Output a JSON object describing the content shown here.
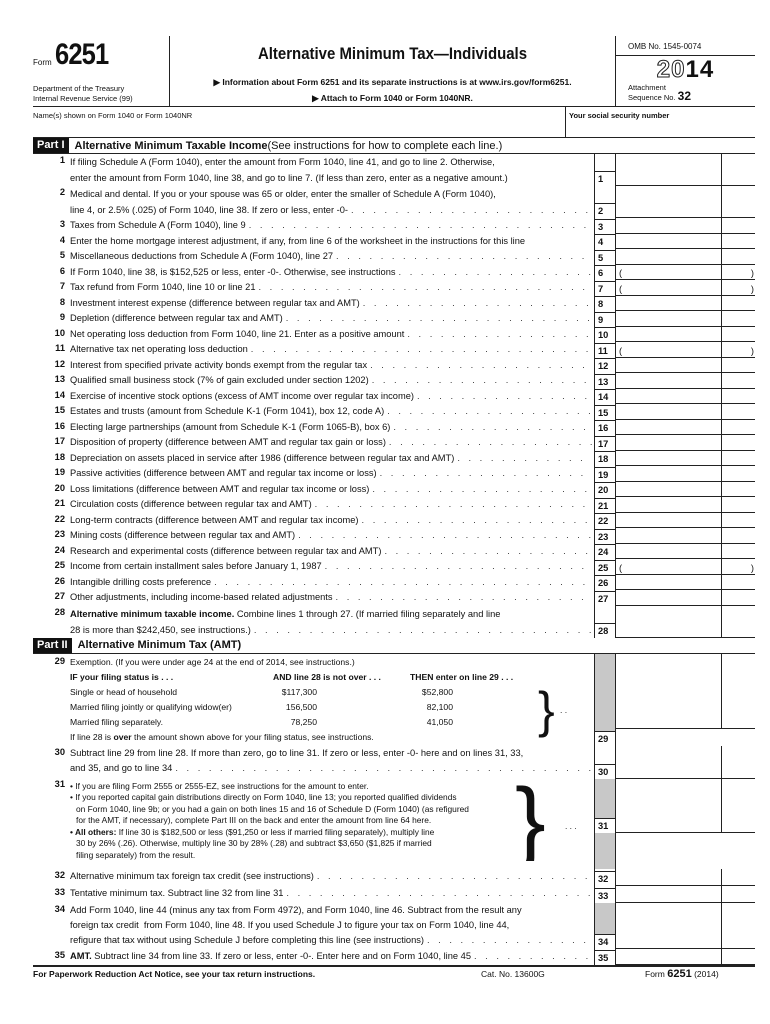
{
  "header": {
    "form_word": "Form",
    "form_number": "6251",
    "department": "Department of the Treasury",
    "irs": "Internal Revenue Service (99)",
    "title": "Alternative Minimum Tax—Individuals",
    "info": "▶ Information about Form 6251 and its separate instructions is at www.irs.gov/form6251.",
    "attach": "▶ Attach to Form 1040 or Form 1040NR.",
    "omb": "OMB No. 1545-0074",
    "year_outline": "20",
    "year_bold": "14",
    "attachment": "Attachment",
    "sequence": "Sequence No.",
    "sequence_no": "32"
  },
  "name_row": {
    "names_label": "Name(s) shown on Form 1040 or Form 1040NR",
    "ssn_label": "Your social security number"
  },
  "part1": {
    "tag": "Part I",
    "title": "Alternative Minimum Taxable Income",
    "subtitle": " (See instructions for how to complete each line.)",
    "lines": [
      {
        "num": "1",
        "lines": [
          "If filing Schedule A (Form 1040), enter the amount from Form 1040, line 41, and go to line 2. Otherwise,",
          "enter the amount from Form 1040, line 38, and go to line 7. (If less than zero, enter as a negative amount.)"
        ],
        "box": "1"
      },
      {
        "num": "2",
        "lines": [
          "Medical and dental. If you or your spouse was 65 or older, enter the smaller of Schedule A (Form 1040),",
          "line 4, or 2.5% (.025) of Form 1040, line 38. If zero or less, enter -0-"
        ],
        "box": "2",
        "lead": true
      },
      {
        "num": "3",
        "lines": [
          "Taxes from Schedule A (Form 1040), line 9"
        ],
        "box": "3",
        "lead": true
      },
      {
        "num": "4",
        "lines": [
          "Enter the home mortgage interest adjustment, if any, from line 6 of the worksheet in the instructions for this line"
        ],
        "box": "4"
      },
      {
        "num": "5",
        "lines": [
          "Miscellaneous deductions from Schedule A (Form 1040), line 27"
        ],
        "box": "5",
        "lead": true
      },
      {
        "num": "6",
        "lines": [
          "If Form 1040, line 38, is $152,525 or less, enter -0-. Otherwise, see instructions"
        ],
        "box": "6",
        "lead": true,
        "paren": [
          "(",
          ")"
        ]
      },
      {
        "num": "7",
        "lines": [
          "Tax refund from Form 1040, line 10 or line 21"
        ],
        "box": "7",
        "lead": true,
        "paren": [
          "(",
          ")"
        ]
      },
      {
        "num": "8",
        "lines": [
          "Investment interest expense (difference between regular tax and AMT)"
        ],
        "box": "8",
        "lead": true
      },
      {
        "num": "9",
        "lines": [
          "Depletion (difference between regular tax and AMT)"
        ],
        "box": "9",
        "lead": true
      },
      {
        "num": "10",
        "lines": [
          "Net operating loss deduction from Form 1040, line 21. Enter as a positive amount"
        ],
        "box": "10",
        "lead": true
      },
      {
        "num": "11",
        "lines": [
          "Alternative tax net operating loss deduction"
        ],
        "box": "11",
        "lead": true,
        "paren": [
          "(",
          ")"
        ]
      },
      {
        "num": "12",
        "lines": [
          "Interest from specified private activity bonds exempt from the regular tax"
        ],
        "box": "12",
        "lead": true
      },
      {
        "num": "13",
        "lines": [
          "Qualified small business stock (7% of gain excluded under section 1202)"
        ],
        "box": "13",
        "lead": true
      },
      {
        "num": "14",
        "lines": [
          "Exercise of incentive stock options (excess of AMT income over regular tax income)"
        ],
        "box": "14",
        "lead": true
      },
      {
        "num": "15",
        "lines": [
          "Estates and trusts (amount from Schedule K-1 (Form 1041), box 12, code A)"
        ],
        "box": "15",
        "lead": true
      },
      {
        "num": "16",
        "lines": [
          "Electing large partnerships (amount from Schedule K-1 (Form 1065-B), box 6)"
        ],
        "box": "16",
        "lead": true
      },
      {
        "num": "17",
        "lines": [
          "Disposition of property (difference between AMT and regular tax gain or loss)"
        ],
        "box": "17",
        "lead": true
      },
      {
        "num": "18",
        "lines": [
          "Depreciation on assets placed in service after 1986 (difference between regular tax and AMT)"
        ],
        "box": "18",
        "lead": true
      },
      {
        "num": "19",
        "lines": [
          "Passive activities (difference between AMT and regular tax income or loss)"
        ],
        "box": "19",
        "lead": true
      },
      {
        "num": "20",
        "lines": [
          "Loss limitations (difference between AMT and regular tax income or loss)"
        ],
        "box": "20",
        "lead": true
      },
      {
        "num": "21",
        "lines": [
          "Circulation costs (difference between regular tax and AMT)"
        ],
        "box": "21",
        "lead": true
      },
      {
        "num": "22",
        "lines": [
          "Long-term contracts (difference between AMT and regular tax income)"
        ],
        "box": "22",
        "lead": true
      },
      {
        "num": "23",
        "lines": [
          "Mining costs (difference between regular tax and AMT)"
        ],
        "box": "23",
        "lead": true
      },
      {
        "num": "24",
        "lines": [
          "Research and experimental costs (difference between regular tax and AMT)"
        ],
        "box": "24",
        "lead": true
      },
      {
        "num": "25",
        "lines": [
          "Income from certain installment sales before January 1, 1987"
        ],
        "box": "25",
        "lead": true,
        "paren": [
          "(",
          ")"
        ]
      },
      {
        "num": "26",
        "lines": [
          "Intangible drilling costs preference"
        ],
        "box": "26",
        "lead": true
      },
      {
        "num": "27",
        "lines": [
          "Other adjustments, including income-based related adjustments"
        ],
        "box": "27",
        "lead": true
      },
      {
        "num": "28",
        "bold": "Alternative minimum taxable income.",
        "lines": [
          " Combine lines 1 through 27. (If married filing separately and line",
          "28 is more than $242,450, see instructions.)"
        ],
        "box": "28",
        "lead": true
      }
    ]
  },
  "part2": {
    "tag": "Part II",
    "title": "Alternative Minimum Tax (AMT)",
    "l29": {
      "num": "29",
      "intro": "Exemption. (If you were under age 24 at the end of 2014, see instructions.)",
      "h1": "IF your filing status is . . .",
      "h2": "AND line 28 is not over . . .",
      "h3": "THEN enter on line 29 . . .",
      "rows": [
        {
          "status": "Single or head of household",
          "over": "$117,300",
          "enter": "$52,800"
        },
        {
          "status": "Married filing jointly or qualifying widow(er)",
          "over": "156,500",
          "enter": "82,100"
        },
        {
          "status": "Married filing separately.",
          "over": "78,250",
          "enter": "41,050"
        }
      ],
      "note_a": "If line 28 is ",
      "note_b": "over",
      "note_c": " the amount shown above for your filing status, see instructions.",
      "box": "29"
    },
    "l30": {
      "num": "30",
      "lines": [
        "Subtract line 29 from line 28. If more than zero, go to line 31. If zero or less, enter -0- here and on lines 31, 33,",
        "and 35, and go to line 34"
      ],
      "box": "30"
    },
    "l31": {
      "num": "31",
      "b1": "• If you are filing Form 2555 or 2555-EZ, see instructions for the amount to enter.",
      "b2": [
        "• If you reported capital gain distributions directly on Form 1040, line 13; you reported qualified dividends",
        "on Form 1040, line 9b; or you had a gain on both lines 15 and 16 of Schedule D (Form 1040) (as refigured",
        "for the AMT, if necessary), complete Part III on the back and enter the amount from line 64 here."
      ],
      "b3_bold": "• All others:",
      "b3": [
        " If line 30 is $182,500 or less ($91,250 or less if married filing separately), multiply line",
        "30 by 26% (.26). Otherwise, multiply line 30 by 28% (.28) and subtract $3,650 ($1,825 if married",
        "filing separately) from the result."
      ],
      "box": "31"
    },
    "l32": {
      "num": "32",
      "lines": [
        "Alternative minimum tax foreign tax credit (see instructions)"
      ],
      "box": "32"
    },
    "l33": {
      "num": "33",
      "lines": [
        "Tentative minimum tax. Subtract line 32 from line 31"
      ],
      "box": "33"
    },
    "l34": {
      "num": "34",
      "lines": [
        "Add Form 1040, line 44 (minus any tax from Form 4972), and Form 1040, line 46. Subtract from the result any",
        "foreign tax credit  from Form 1040, line 48. If you used Schedule J to figure your tax on Form 1040, line 44,",
        "refigure that tax without using Schedule J before completing this line (see instructions)"
      ],
      "box": "34"
    },
    "l35": {
      "num": "35",
      "bold": "AMT.",
      "lines": [
        " Subtract line 34 from line 33. If zero or less, enter -0-. Enter here and on Form 1040, line 45"
      ],
      "box": "35"
    }
  },
  "footer": {
    "notice": "For Paperwork Reduction Act Notice, see your tax return instructions.",
    "cat": "Cat. No. 13600G",
    "form_word": "Form",
    "form_number": "6251",
    "year": "(2014)"
  }
}
